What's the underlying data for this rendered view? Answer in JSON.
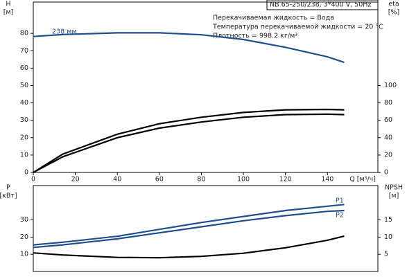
{
  "chart_data": [
    {
      "type": "line",
      "ylabel": [
        "H",
        "[м]"
      ],
      "y2label": [
        "eta",
        "[%]"
      ],
      "xlabel": "Q [м³/ч]",
      "annotations": [
        "NB 65-250/238, 3*400 V, 50Hz",
        "Перекачиваемая жидкость = Вода",
        "Температура перекачиваемой жидкости = 20 °C",
        "Плотность = 998.2 кг/м³"
      ],
      "xlim": [
        0,
        164
      ],
      "xticks": [
        0,
        20,
        40,
        60,
        80,
        100,
        120,
        140
      ],
      "ylim": [
        0,
        98
      ],
      "yticks": [
        0,
        10,
        20,
        30,
        40,
        50,
        60,
        70,
        80
      ],
      "y2lim": [
        0,
        196
      ],
      "y2ticks": [
        0,
        20,
        40,
        60,
        80,
        100
      ],
      "x": [
        0,
        14,
        40,
        60,
        80,
        100,
        120,
        140,
        148
      ],
      "series": [
        {
          "name": "238 мм",
          "color": "#1f4e8c",
          "values": [
            78.2,
            79.3,
            80.3,
            80.3,
            79.2,
            76.5,
            72,
            66.5,
            63.3
          ]
        },
        {
          "color": "#000000",
          "axis": "y2",
          "values": [
            0,
            21,
            44,
            56,
            63.5,
            69,
            72,
            72.5,
            72
          ]
        },
        {
          "color": "#000000",
          "axis": "y2",
          "values": [
            0,
            18,
            40,
            51,
            58,
            63.5,
            66.5,
            67,
            66.5
          ]
        }
      ]
    },
    {
      "type": "line",
      "ylabel": [
        "P",
        "[кВт]"
      ],
      "y2label": [
        "NPSH",
        "[м]"
      ],
      "xlim": [
        0,
        164
      ],
      "ylim": [
        0,
        50
      ],
      "yticks": [
        10,
        20,
        30
      ],
      "y2lim": [
        0,
        25
      ],
      "y2ticks": [
        5,
        10,
        15
      ],
      "x": [
        0,
        14,
        40,
        60,
        80,
        100,
        120,
        140,
        148
      ],
      "series": [
        {
          "name": "P1",
          "color": "#1f4e8c",
          "values": [
            15.5,
            17,
            20.5,
            24.5,
            28.5,
            32,
            35.5,
            38,
            39
          ]
        },
        {
          "name": "P2",
          "color": "#1f4e8c",
          "values": [
            14,
            15.5,
            19,
            22.5,
            26,
            29.5,
            32.5,
            35,
            35.5
          ]
        },
        {
          "color": "#000000",
          "axis": "y2",
          "values": [
            5.4,
            4.8,
            4.1,
            4.0,
            4.4,
            5.3,
            6.9,
            9.1,
            10.3
          ]
        }
      ]
    }
  ]
}
